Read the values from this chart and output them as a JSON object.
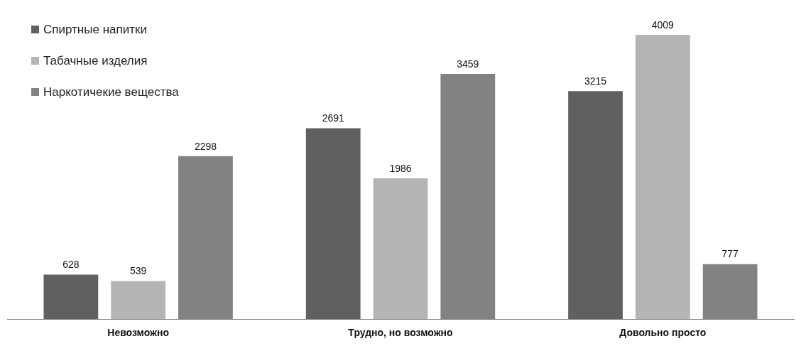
{
  "chart_data": {
    "type": "bar",
    "categories": [
      "Невозможно",
      "Трудно, но возможно",
      "Довольно просто"
    ],
    "series": [
      {
        "name": "Спиртные напитки",
        "color": "#606060",
        "values": [
          628,
          2691,
          3215
        ]
      },
      {
        "name": "Табачные изделия",
        "color": "#b4b4b4",
        "values": [
          539,
          1986,
          4009
        ]
      },
      {
        "name": "Наркотичекие вещества",
        "color": "#828282",
        "values": [
          2298,
          3459,
          777
        ]
      }
    ],
    "data_labels": true,
    "legend": "top left",
    "grid": false
  }
}
